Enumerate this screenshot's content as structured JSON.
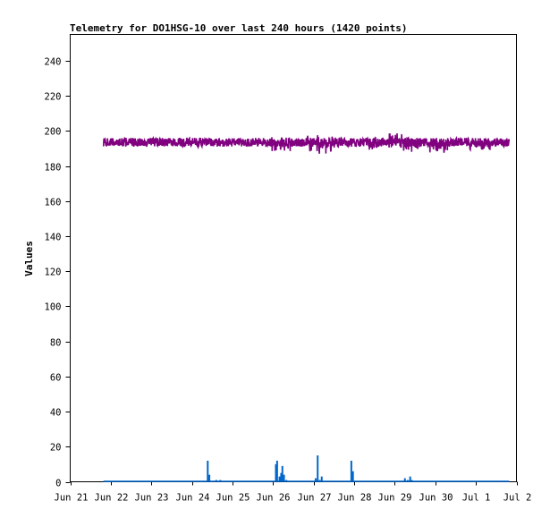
{
  "chart_data": {
    "type": "line",
    "title": "Telemetry for DO1HSG-10 over last 240 hours (1420 points)",
    "xlabel": "",
    "ylabel": "Values",
    "ylim": [
      0,
      255
    ],
    "yticks": [
      0,
      20,
      40,
      60,
      80,
      100,
      120,
      140,
      160,
      180,
      200,
      220,
      240
    ],
    "xlim": [
      0,
      11
    ],
    "xticks": [
      {
        "x": 0,
        "label": "Jun 21"
      },
      {
        "x": 1,
        "label": "Jun 22"
      },
      {
        "x": 2,
        "label": "Jun 23"
      },
      {
        "x": 3,
        "label": "Jun 24"
      },
      {
        "x": 4,
        "label": "Jun 25"
      },
      {
        "x": 5,
        "label": "Jun 26"
      },
      {
        "x": 6,
        "label": "Jun 27"
      },
      {
        "x": 7,
        "label": "Jun 28"
      },
      {
        "x": 8,
        "label": "Jun 29"
      },
      {
        "x": 9,
        "label": "Jun 30"
      },
      {
        "x": 10,
        "label": "Jul 1"
      },
      {
        "x": 11,
        "label": "Jul 2"
      }
    ],
    "grid": false,
    "series": [
      {
        "color": "#800080",
        "x_range": [
          0.82,
          10.82
        ],
        "mean": 193.5,
        "noise": 2.5,
        "spikes": [
          {
            "x": 5.2,
            "min": 188,
            "max": 197
          },
          {
            "x": 6.1,
            "min": 187,
            "max": 198
          },
          {
            "x": 6.5,
            "min": 188,
            "max": 197
          },
          {
            "x": 7.6,
            "min": 189,
            "max": 196
          },
          {
            "x": 8.1,
            "min": 190,
            "max": 199
          },
          {
            "x": 8.4,
            "min": 188,
            "max": 196
          },
          {
            "x": 9.1,
            "min": 187,
            "max": 194
          },
          {
            "x": 10.1,
            "min": 189,
            "max": 196
          }
        ]
      },
      {
        "color": "#0066cc",
        "x_range": [
          0.82,
          10.82
        ],
        "baseline": 0,
        "points": [
          [
            3.39,
            12
          ],
          [
            3.43,
            4
          ],
          [
            3.6,
            1
          ],
          [
            3.7,
            1
          ],
          [
            5.07,
            10
          ],
          [
            5.1,
            12
          ],
          [
            5.16,
            3
          ],
          [
            5.2,
            5
          ],
          [
            5.23,
            9
          ],
          [
            5.27,
            4
          ],
          [
            5.33,
            1
          ],
          [
            6.05,
            2
          ],
          [
            6.1,
            15
          ],
          [
            6.15,
            1
          ],
          [
            6.2,
            3
          ],
          [
            6.93,
            12
          ],
          [
            6.97,
            6
          ],
          [
            8.25,
            2
          ],
          [
            8.32,
            1
          ],
          [
            8.38,
            3
          ],
          [
            8.42,
            1
          ]
        ]
      }
    ]
  }
}
